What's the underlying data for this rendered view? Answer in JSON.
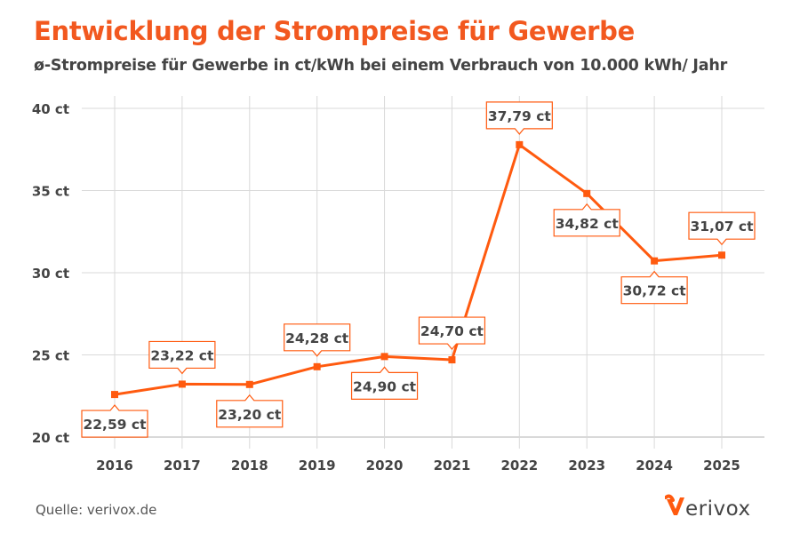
{
  "title": "Entwicklung der Strompreise für Gewerbe",
  "subtitle": "ø-Strompreise für Gewerbe in ct/kWh bei einem Verbrauch von 10.000 kWh/ Jahr",
  "source": "Quelle: verivox.de",
  "logo_text": "verivox",
  "colors": {
    "accent": "#ff5a0f",
    "title": "#f2581f",
    "grid": "#d9d9d9",
    "text": "#444444"
  },
  "chart_data": {
    "type": "line",
    "title": "Entwicklung der Strompreise für Gewerbe",
    "subtitle": "ø-Strompreise für Gewerbe in ct/kWh bei einem Verbrauch von 10.000 kWh/ Jahr",
    "categories": [
      "2016",
      "2017",
      "2018",
      "2019",
      "2020",
      "2021",
      "2022",
      "2023",
      "2024",
      "2025"
    ],
    "values": [
      22.59,
      23.22,
      23.2,
      24.28,
      24.9,
      24.7,
      37.79,
      34.82,
      30.72,
      31.07
    ],
    "data_labels": [
      "22,59 ct",
      "23,22 ct",
      "23,20 ct",
      "24,28 ct",
      "24,90 ct",
      "24,70 ct",
      "37,79 ct",
      "34,82 ct",
      "30,72 ct",
      "31,07 ct"
    ],
    "label_positions": [
      "below",
      "above",
      "below",
      "above",
      "below",
      "above",
      "above",
      "below",
      "below",
      "above"
    ],
    "y_ticks": [
      20,
      25,
      30,
      35,
      40
    ],
    "y_tick_labels": [
      "20 ct",
      "25 ct",
      "30 ct",
      "35 ct",
      "40 ct"
    ],
    "ylim": [
      20,
      40
    ],
    "xlabel": "",
    "ylabel": "",
    "grid": true,
    "marker": "square"
  }
}
